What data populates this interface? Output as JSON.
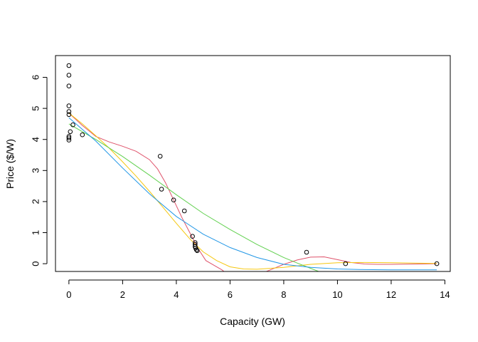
{
  "chart_data": {
    "type": "scatter",
    "title": "",
    "xlabel": "Capacity (GW)",
    "ylabel": "Price ($/W)",
    "xlim": [
      -0.5,
      14.2
    ],
    "ylim": [
      -0.25,
      6.7
    ],
    "xticks": [
      0,
      2,
      4,
      6,
      8,
      10,
      12,
      14
    ],
    "yticks": [
      0,
      1,
      2,
      3,
      4,
      5,
      6
    ],
    "grid": false,
    "legend": "none",
    "points": {
      "x": [
        0,
        0,
        0,
        0,
        0,
        0,
        0,
        0,
        0,
        0.05,
        0.15,
        0.5,
        3.4,
        3.45,
        3.9,
        4.3,
        4.6,
        4.7,
        4.7,
        4.7,
        4.72,
        4.75,
        4.78,
        8.85,
        10.3,
        13.7
      ],
      "y": [
        6.38,
        6.07,
        5.72,
        5.08,
        4.9,
        4.8,
        4.1,
        4.05,
        3.98,
        4.25,
        4.47,
        4.15,
        3.46,
        2.4,
        2.05,
        1.7,
        0.88,
        0.68,
        0.62,
        0.55,
        0.5,
        0.45,
        0.42,
        0.37,
        0.0,
        0.0
      ]
    },
    "series": [
      {
        "color": "#DF536B",
        "segments": [
          {
            "x": [
              0.0,
              0.5,
              1.0,
              1.5,
              2.0,
              2.5,
              3.0,
              3.3,
              3.6,
              3.9,
              4.2,
              4.5,
              4.8,
              5.1,
              5.4,
              5.7,
              5.85
            ],
            "y": [
              4.85,
              4.45,
              4.1,
              3.92,
              3.78,
              3.62,
              3.35,
              3.05,
              2.6,
              2.05,
              1.5,
              1.0,
              0.5,
              0.1,
              -0.05,
              -0.2,
              -0.3
            ]
          },
          {
            "x": [
              7.2,
              7.5,
              8.0,
              8.5,
              9.0,
              9.5,
              10.0,
              10.5,
              11.0,
              11.5,
              12.0,
              13.0,
              13.7
            ],
            "y": [
              -0.3,
              -0.2,
              -0.02,
              0.12,
              0.21,
              0.22,
              0.13,
              0.04,
              -0.01,
              -0.02,
              -0.02,
              -0.01,
              0.0
            ]
          }
        ]
      },
      {
        "color": "#F5C710",
        "segments": [
          {
            "x": [
              0.0,
              0.5,
              1.0,
              1.5,
              2.0,
              2.5,
              3.0,
              3.5,
              4.0,
              4.5,
              5.0,
              5.5,
              6.0,
              6.5,
              7.0,
              8.0,
              9.0,
              10.0,
              11.0,
              12.0,
              13.7
            ],
            "y": [
              4.85,
              4.5,
              4.12,
              3.72,
              3.28,
              2.82,
              2.33,
              1.82,
              1.3,
              0.8,
              0.38,
              0.1,
              -0.1,
              -0.17,
              -0.18,
              -0.12,
              -0.02,
              0.03,
              0.04,
              0.03,
              0.01
            ]
          }
        ]
      },
      {
        "color": "#61D04F",
        "segments": [
          {
            "x": [
              0.0,
              1.0,
              2.0,
              3.0,
              4.0,
              5.0,
              6.0,
              7.0,
              8.0,
              8.5,
              9.0,
              9.3
            ],
            "y": [
              4.5,
              4.0,
              3.45,
              2.85,
              2.22,
              1.62,
              1.1,
              0.62,
              0.2,
              0.02,
              -0.15,
              -0.25
            ]
          }
        ]
      },
      {
        "color": "#2297E6",
        "segments": [
          {
            "x": [
              0.0,
              1.0,
              2.0,
              3.0,
              4.0,
              5.0,
              6.0,
              7.0,
              8.0,
              9.0,
              10.0,
              11.0,
              12.0,
              13.7
            ],
            "y": [
              4.7,
              3.95,
              3.08,
              2.25,
              1.52,
              0.95,
              0.52,
              0.2,
              -0.02,
              -0.12,
              -0.17,
              -0.19,
              -0.2,
              -0.2
            ]
          }
        ]
      }
    ]
  }
}
